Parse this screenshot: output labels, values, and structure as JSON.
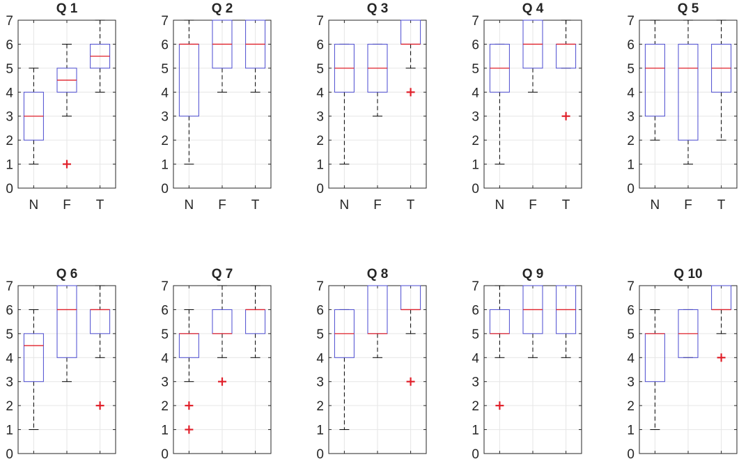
{
  "chart_data": {
    "type": "box",
    "categories": [
      "N",
      "F",
      "T"
    ],
    "ylim": [
      0,
      7
    ],
    "yticks": [
      0,
      1,
      2,
      3,
      4,
      5,
      6,
      7
    ],
    "grid": true,
    "colors": {
      "box": "#4a4ad0",
      "median": "#e0202a",
      "outlier": "#e0202a",
      "whisker": "#000000",
      "grid": "#e6e6e6",
      "axis": "#262626"
    },
    "panels": [
      {
        "title": "Q 1",
        "boxes": [
          {
            "category": "N",
            "min": 1,
            "q1": 2,
            "median": 3,
            "q3": 4,
            "max": 5,
            "outliers": []
          },
          {
            "category": "F",
            "min": 3,
            "q1": 4,
            "median": 4.5,
            "q3": 5,
            "max": 6,
            "outliers": [
              1
            ]
          },
          {
            "category": "T",
            "min": 4,
            "q1": 5,
            "median": 5.5,
            "q3": 6,
            "max": 7,
            "outliers": []
          }
        ]
      },
      {
        "title": "Q 2",
        "boxes": [
          {
            "category": "N",
            "min": 1,
            "q1": 3,
            "median": 6,
            "q3": 6,
            "max": 7,
            "outliers": []
          },
          {
            "category": "F",
            "min": 4,
            "q1": 5,
            "median": 6,
            "q3": 7,
            "max": 7,
            "outliers": []
          },
          {
            "category": "T",
            "min": 4,
            "q1": 5,
            "median": 6,
            "q3": 7,
            "max": 7,
            "outliers": []
          }
        ]
      },
      {
        "title": "Q 3",
        "boxes": [
          {
            "category": "N",
            "min": 1,
            "q1": 4,
            "median": 5,
            "q3": 6,
            "max": 6,
            "outliers": []
          },
          {
            "category": "F",
            "min": 3,
            "q1": 4,
            "median": 5,
            "q3": 6,
            "max": 6,
            "outliers": []
          },
          {
            "category": "T",
            "min": 5,
            "q1": 6,
            "median": 6,
            "q3": 7,
            "max": 7,
            "outliers": [
              4
            ]
          }
        ]
      },
      {
        "title": "Q 4",
        "boxes": [
          {
            "category": "N",
            "min": 1,
            "q1": 4,
            "median": 5,
            "q3": 6,
            "max": 6,
            "outliers": []
          },
          {
            "category": "F",
            "min": 4,
            "q1": 5,
            "median": 6,
            "q3": 7,
            "max": 7,
            "outliers": []
          },
          {
            "category": "T",
            "min": 5,
            "q1": 5,
            "median": 6,
            "q3": 6,
            "max": 7,
            "outliers": [
              3
            ]
          }
        ]
      },
      {
        "title": "Q 5",
        "boxes": [
          {
            "category": "N",
            "min": 2,
            "q1": 3,
            "median": 5,
            "q3": 6,
            "max": 7,
            "outliers": []
          },
          {
            "category": "F",
            "min": 1,
            "q1": 2,
            "median": 5,
            "q3": 6,
            "max": 7,
            "outliers": []
          },
          {
            "category": "T",
            "min": 2,
            "q1": 4,
            "median": 5,
            "q3": 6,
            "max": 7,
            "outliers": []
          }
        ]
      },
      {
        "title": "Q 6",
        "boxes": [
          {
            "category": "N",
            "min": 1,
            "q1": 3,
            "median": 4.5,
            "q3": 5,
            "max": 6,
            "outliers": []
          },
          {
            "category": "F",
            "min": 3,
            "q1": 4,
            "median": 6,
            "q3": 7,
            "max": 7,
            "outliers": []
          },
          {
            "category": "T",
            "min": 4,
            "q1": 5,
            "median": 6,
            "q3": 6,
            "max": 7,
            "outliers": [
              2
            ]
          }
        ]
      },
      {
        "title": "Q 7",
        "boxes": [
          {
            "category": "N",
            "min": 3,
            "q1": 4,
            "median": 5,
            "q3": 5,
            "max": 6,
            "outliers": [
              2,
              1
            ]
          },
          {
            "category": "F",
            "min": 4,
            "q1": 5,
            "median": 5,
            "q3": 6,
            "max": 7,
            "outliers": [
              3
            ]
          },
          {
            "category": "T",
            "min": 4,
            "q1": 5,
            "median": 6,
            "q3": 6,
            "max": 7,
            "outliers": []
          }
        ]
      },
      {
        "title": "Q 8",
        "boxes": [
          {
            "category": "N",
            "min": 1,
            "q1": 4,
            "median": 5,
            "q3": 6,
            "max": 6,
            "outliers": []
          },
          {
            "category": "F",
            "min": 4,
            "q1": 5,
            "median": 5,
            "q3": 7,
            "max": 7,
            "outliers": []
          },
          {
            "category": "T",
            "min": 5,
            "q1": 6,
            "median": 6,
            "q3": 7,
            "max": 7,
            "outliers": [
              3
            ]
          }
        ]
      },
      {
        "title": "Q 9",
        "boxes": [
          {
            "category": "N",
            "min": 4,
            "q1": 5,
            "median": 5,
            "q3": 6,
            "max": 7,
            "outliers": [
              2
            ]
          },
          {
            "category": "F",
            "min": 4,
            "q1": 5,
            "median": 6,
            "q3": 7,
            "max": 7,
            "outliers": []
          },
          {
            "category": "T",
            "min": 4,
            "q1": 5,
            "median": 6,
            "q3": 7,
            "max": 7,
            "outliers": []
          }
        ]
      },
      {
        "title": "Q 10",
        "boxes": [
          {
            "category": "N",
            "min": 1,
            "q1": 3,
            "median": 5,
            "q3": 5,
            "max": 6,
            "outliers": []
          },
          {
            "category": "F",
            "min": 4,
            "q1": 4,
            "median": 5,
            "q3": 6,
            "max": 6,
            "outliers": []
          },
          {
            "category": "T",
            "min": 5,
            "q1": 6,
            "median": 6,
            "q3": 7,
            "max": 7,
            "outliers": [
              4
            ]
          }
        ]
      }
    ]
  }
}
